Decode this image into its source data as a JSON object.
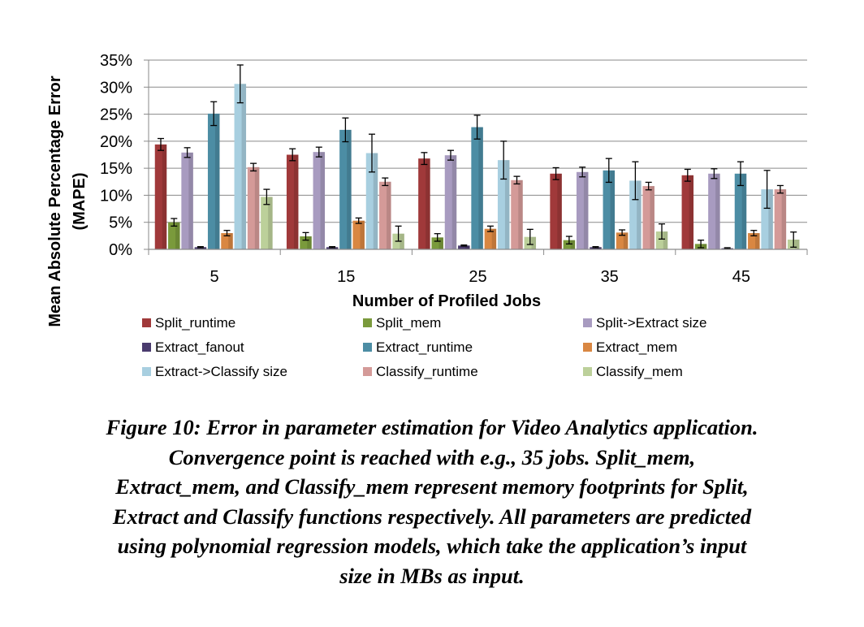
{
  "chart_data": {
    "type": "bar",
    "title": "",
    "xlabel": "Number of Profiled Jobs",
    "ylabel": "Mean Absolute Percentage Error (MAPE)",
    "ylabel_lines": [
      "Mean Absolute Percentage Error",
      "(MAPE)"
    ],
    "ylim": [
      0,
      35
    ],
    "yticks": [
      0,
      5,
      10,
      15,
      20,
      25,
      30,
      35
    ],
    "ytick_labels": [
      "0%",
      "5%",
      "10%",
      "15%",
      "20%",
      "25%",
      "30%",
      "35%"
    ],
    "categories": [
      "5",
      "15",
      "25",
      "35",
      "45"
    ],
    "grid": "horizontal",
    "legend_placement": "bottom",
    "series": [
      {
        "name": "Split_runtime",
        "color": "#A0393A",
        "values": [
          19.4,
          17.5,
          16.8,
          14.0,
          13.7
        ],
        "errors": [
          1.1,
          1.1,
          1.1,
          1.1,
          1.1
        ]
      },
      {
        "name": "Split_mem",
        "color": "#7A9A3C",
        "values": [
          5.0,
          2.4,
          2.2,
          1.7,
          1.0
        ],
        "errors": [
          0.7,
          0.7,
          0.7,
          0.7,
          0.7
        ]
      },
      {
        "name": "Split->Extract size",
        "color": "#A89BC0",
        "values": [
          17.9,
          18.0,
          17.4,
          14.3,
          14.0
        ],
        "errors": [
          0.9,
          0.9,
          0.9,
          0.9,
          0.9
        ]
      },
      {
        "name": "Extract_fanout",
        "color": "#4A3B6E",
        "values": [
          0.4,
          0.4,
          0.7,
          0.4,
          0.2
        ],
        "errors": [
          0.1,
          0.1,
          0.1,
          0.1,
          0.1
        ]
      },
      {
        "name": "Extract_runtime",
        "color": "#4C8DA4",
        "values": [
          25.1,
          22.1,
          22.6,
          14.6,
          14.0
        ],
        "errors": [
          2.2,
          2.2,
          2.2,
          2.2,
          2.2
        ]
      },
      {
        "name": "Extract_mem",
        "color": "#D98742",
        "values": [
          3.0,
          5.3,
          3.8,
          3.1,
          3.0
        ],
        "errors": [
          0.5,
          0.5,
          0.5,
          0.5,
          0.5
        ]
      },
      {
        "name": "Extract->Classify size",
        "color": "#A8CFE0",
        "values": [
          30.6,
          17.8,
          16.5,
          12.7,
          11.1
        ],
        "errors": [
          3.5,
          3.5,
          3.5,
          3.5,
          3.5
        ]
      },
      {
        "name": "Classify_runtime",
        "color": "#D49A98",
        "values": [
          15.2,
          12.5,
          12.8,
          11.7,
          11.1
        ],
        "errors": [
          0.7,
          0.7,
          0.7,
          0.7,
          0.7
        ]
      },
      {
        "name": "Classify_mem",
        "color": "#BCD09A",
        "values": [
          9.7,
          2.9,
          2.3,
          3.3,
          1.8
        ],
        "errors": [
          1.4,
          1.4,
          1.4,
          1.4,
          1.4
        ]
      }
    ]
  },
  "caption": {
    "lines": [
      "Figure 10: Error in parameter estimation for Video Analytics application.",
      "Convergence point is reached with e.g., 35 jobs.  Split_mem,",
      "Extract_mem, and Classify_mem represent memory footprints for Split,",
      "Extract and Classify functions respectively. All parameters are predicted",
      "using polynomial regression models, which take the application’s input",
      "size in MBs as input."
    ]
  }
}
